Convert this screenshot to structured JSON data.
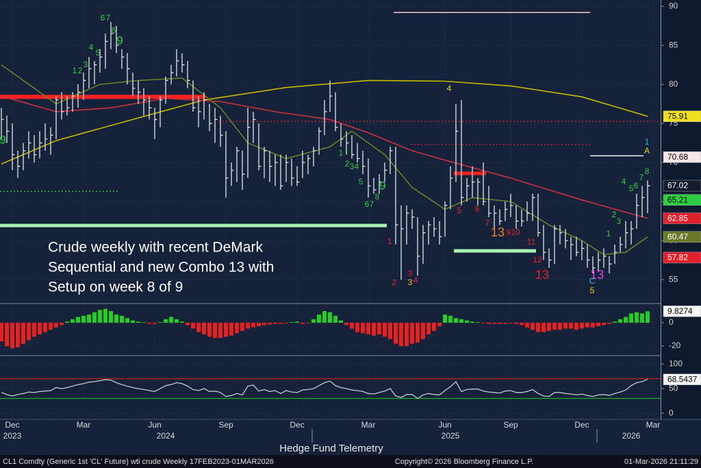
{
  "chart_data": [
    {
      "type": "ohlc",
      "color": "#e6e6e6",
      "grid": true,
      "categories": [
        null,
        null,
        "Dec",
        null,
        null,
        null,
        null,
        null,
        null,
        null,
        null,
        null,
        null,
        null,
        null,
        "Mar",
        null,
        null,
        null,
        null,
        null,
        null,
        null,
        null,
        null,
        null,
        null,
        null,
        "Jun",
        null,
        null,
        null,
        null,
        null,
        null,
        null,
        null,
        null,
        null,
        null,
        null,
        "Sep",
        null,
        null,
        null,
        null,
        null,
        null,
        null,
        null,
        null,
        null,
        null,
        null,
        "Dec",
        null,
        null,
        null,
        null,
        null,
        null,
        null,
        null,
        null,
        null,
        null,
        null,
        "Mar",
        null,
        null,
        null,
        null,
        null,
        null,
        null,
        null,
        null,
        null,
        null,
        null,
        null,
        "Jun",
        null,
        null,
        null,
        null,
        null,
        null,
        null,
        null,
        null,
        null,
        null,
        "Sep",
        null,
        null,
        null,
        null,
        null,
        null,
        null,
        null,
        null,
        null,
        null,
        null,
        "Dec",
        null,
        null,
        null,
        null,
        null,
        null,
        null,
        null,
        null,
        null,
        null,
        null,
        "Mar"
      ],
      "x_year_labels": [
        "2023",
        "2024",
        "2025",
        "2026"
      ],
      "high": [
        77,
        76,
        75,
        71.5,
        72.5,
        74,
        73.5,
        74,
        75,
        74.5,
        78.5,
        79,
        78.5,
        79,
        80,
        81.5,
        83.5,
        83,
        84.5,
        86.5,
        88,
        87.5,
        84.5,
        84,
        81.5,
        80.5,
        79.5,
        78.5,
        77,
        78.5,
        81,
        82.5,
        84.5,
        84,
        83,
        80.5,
        78.5,
        79,
        77.5,
        77,
        76,
        74,
        70,
        72,
        71.5,
        77,
        76.5,
        75,
        72,
        71.5,
        71,
        71,
        71,
        70.5,
        69.5,
        71.5,
        71,
        72,
        74.5,
        78,
        80.5,
        79,
        75,
        74,
        73.5,
        72.5,
        71.5,
        70.5,
        68,
        68.5,
        70,
        72,
        72,
        64.5,
        64.5,
        64,
        63,
        62,
        62.5,
        63,
        62.5,
        65,
        69.5,
        77.5,
        78,
        68,
        69.5,
        68,
        70,
        67,
        64.5,
        64,
        65,
        66,
        64.5,
        64,
        65,
        66,
        66,
        62,
        59,
        62,
        62,
        61.5,
        60.5,
        60.5,
        60,
        59.5,
        58,
        58.5,
        59,
        58,
        59.5,
        60.5,
        62.5,
        62.5,
        66,
        67,
        67.7,
        null
      ],
      "low": [
        73,
        72.5,
        69,
        68,
        69,
        70.5,
        70,
        70.5,
        71.5,
        71,
        73,
        75.5,
        76,
        76.5,
        77,
        78,
        79.5,
        80,
        81.5,
        82,
        84.5,
        84,
        82,
        80,
        78.5,
        77.5,
        76,
        75.5,
        73,
        74.5,
        77.5,
        80,
        81,
        81.5,
        79.5,
        76.5,
        74.5,
        75.5,
        74,
        72.5,
        72,
        65.5,
        67,
        67.5,
        66.5,
        68,
        72.5,
        69,
        68,
        67.5,
        67,
        66.5,
        67.5,
        67,
        67,
        68,
        68.5,
        69.5,
        71,
        73.5,
        76.5,
        74,
        72,
        71,
        70.5,
        70,
        68.5,
        65.5,
        66,
        66,
        67.5,
        68.5,
        59.5,
        55,
        59.5,
        61.5,
        55.5,
        57,
        59.5,
        60.5,
        59.5,
        60.5,
        64,
        67.5,
        64.5,
        65,
        65.5,
        64.5,
        64.5,
        63,
        61.5,
        62,
        62.5,
        63,
        61.5,
        61.8,
        62.5,
        62.5,
        60.5,
        57.5,
        56.5,
        57,
        59.5,
        59,
        57.5,
        58,
        57.5,
        56.5,
        55.8,
        56,
        56.5,
        55.8,
        57,
        58.5,
        59,
        59.5,
        61.5,
        63,
        63.5,
        null
      ],
      "close": [
        75.5,
        74,
        71,
        69.5,
        71.5,
        72.5,
        71,
        72.5,
        73,
        73.5,
        78,
        76.5,
        77,
        78.5,
        79,
        80.5,
        82,
        82.5,
        83.5,
        85.5,
        86.5,
        85,
        83.5,
        82,
        79.5,
        79,
        78,
        77,
        75.5,
        78,
        80.5,
        81.5,
        83,
        82.5,
        80.5,
        77,
        76.5,
        78,
        75,
        75.5,
        73.5,
        68,
        69,
        71.5,
        68.5,
        74.5,
        75.5,
        69.5,
        71.5,
        69.5,
        70,
        67,
        70,
        68,
        67.5,
        70,
        70.5,
        71.5,
        74,
        76.5,
        78.5,
        74.5,
        73,
        72.5,
        71,
        70.5,
        69.5,
        67,
        66.5,
        67.5,
        69,
        71.5,
        62,
        61.5,
        63.5,
        63,
        58,
        61,
        62,
        61.5,
        60.5,
        64.5,
        68,
        74,
        65.5,
        67,
        67.5,
        67.5,
        65,
        63.5,
        63.5,
        62.5,
        64,
        64.5,
        62.5,
        62.5,
        63.5,
        65.5,
        61,
        58.5,
        57.5,
        61.5,
        61,
        60,
        59.5,
        58.5,
        59,
        57.5,
        56.5,
        57.5,
        58,
        57,
        58.5,
        59.5,
        61,
        61.5,
        64.5,
        65.5,
        67.02,
        null
      ],
      "moving_averages": [
        {
          "color": "#c9b800",
          "x": [
            0,
            10,
            25,
            37,
            52,
            67,
            81,
            93,
            106,
            118
          ],
          "values": [
            69.8,
            72.8,
            75.7,
            78,
            79.6,
            80.5,
            80.4,
            79.8,
            78.4,
            75.91
          ]
        },
        {
          "color": "#c8303c",
          "x": [
            0,
            10,
            20,
            30,
            40,
            50,
            60,
            67,
            75,
            81,
            93,
            106,
            118
          ],
          "values": [
            78.5,
            76.5,
            77,
            78.2,
            77.8,
            76.5,
            75.5,
            73.8,
            71.5,
            70.3,
            68,
            65.2,
            62.85
          ]
        },
        {
          "color": "#6e7d2a",
          "x": [
            0,
            10,
            18,
            25,
            33,
            40,
            45,
            52,
            60,
            64,
            70,
            75,
            81,
            86,
            93,
            100,
            106,
            110,
            114,
            118
          ],
          "values": [
            82.5,
            77.5,
            80,
            80.5,
            80.8,
            77,
            72.5,
            70.5,
            72,
            74,
            71,
            66.8,
            64,
            65.5,
            65,
            62,
            60,
            58.2,
            58.5,
            60.47
          ]
        }
      ],
      "levels": [
        {
          "value": 78.4,
          "color": "#ff2020"
        },
        {
          "value": 61.93,
          "color": "#a8f0b0"
        },
        {
          "value": 58.68,
          "color": "#a8f0b0"
        },
        {
          "value": 68.6,
          "color": "#ff2020"
        },
        {
          "value": 89.2,
          "color": "#f0d0d0"
        },
        {
          "value": 70.85,
          "color": "#f2f2f2"
        },
        {
          "value": 75.26,
          "color": "#e02030"
        },
        {
          "value": 72.3,
          "color": "#e02030"
        },
        {
          "value": 66.3,
          "color": "#30d030"
        }
      ],
      "annotations": [
        {
          "text": "6",
          "color": "#2ecc40"
        },
        {
          "text": "7",
          "color": "#2ecc40"
        },
        {
          "text": "8",
          "color": "#2ecc40"
        },
        {
          "text": "9",
          "color": "#2ecc40"
        },
        {
          "text": "4",
          "color": "#2ecc40"
        },
        {
          "text": "5",
          "color": "#2ecc40"
        },
        {
          "text": "1",
          "color": "#2ecc40"
        },
        {
          "text": "2",
          "color": "#2ecc40"
        },
        {
          "text": "3",
          "color": "#2ecc40"
        },
        {
          "text": "9",
          "color": "#2ecc40"
        },
        {
          "text": "1",
          "color": "#2ecc40"
        },
        {
          "text": "2",
          "color": "#2ecc40"
        },
        {
          "text": "3",
          "color": "#2ecc40"
        },
        {
          "text": "4",
          "color": "#2ecc40"
        },
        {
          "text": "5",
          "color": "#2ecc40"
        },
        {
          "text": "9",
          "color": "#2ecc40"
        },
        {
          "text": "8",
          "color": "#2ecc40"
        },
        {
          "text": "6",
          "color": "#2ecc40"
        },
        {
          "text": "7",
          "color": "#2ecc40"
        },
        {
          "text": "1",
          "color": "#e8202a"
        },
        {
          "text": "2",
          "color": "#e8202a"
        },
        {
          "text": "3",
          "color": "#e8202a"
        },
        {
          "text": "3",
          "color": "#f0d020"
        },
        {
          "text": "4",
          "color": "#e8202a"
        },
        {
          "text": "4",
          "color": "#f0d020"
        },
        {
          "text": "5",
          "color": "#e8202a"
        },
        {
          "text": "6",
          "color": "#e8202a"
        },
        {
          "text": "7",
          "color": "#e8202a"
        },
        {
          "text": "13",
          "color": "#f08020"
        },
        {
          "text": "9",
          "color": "#e8202a"
        },
        {
          "text": "10",
          "color": "#e8202a"
        },
        {
          "text": "11",
          "color": "#e8202a"
        },
        {
          "text": "12",
          "color": "#e8202a"
        },
        {
          "text": "13",
          "color": "#e8202a"
        },
        {
          "text": "13",
          "color": "#e040e0"
        },
        {
          "text": "C",
          "color": "#20c0e0"
        },
        {
          "text": "5",
          "color": "#f0d020"
        },
        {
          "text": "1",
          "color": "#20c0e0"
        },
        {
          "text": "A",
          "color": "#f0d020"
        },
        {
          "text": "1",
          "color": "#2ecc40"
        },
        {
          "text": "2",
          "color": "#2ecc40"
        },
        {
          "text": "3",
          "color": "#2ecc40"
        },
        {
          "text": "4",
          "color": "#2ecc40"
        },
        {
          "text": "5",
          "color": "#2ecc40"
        },
        {
          "text": "6",
          "color": "#2ecc40"
        },
        {
          "text": "7",
          "color": "#2ecc40"
        },
        {
          "text": "8",
          "color": "#2ecc40"
        }
      ],
      "ylim": [
        52.2,
        90.8
      ],
      "yticks": [
        55,
        60,
        65,
        70,
        75,
        80,
        85,
        90
      ],
      "tags": [
        {
          "value": 75.91,
          "color": "#f0e020",
          "text_color": "#000000"
        },
        {
          "value": 70.68,
          "color": "#f5e6e6",
          "text_color": "#000000"
        },
        {
          "value": 67.02,
          "color": "#141c2c",
          "text_color": "#ffffff"
        },
        {
          "value": 65.21,
          "color": "#2ecc40",
          "text_color": "#000000"
        },
        {
          "value": 62.85,
          "color": "#e0202a",
          "text_color": "#ffffff"
        },
        {
          "value": 60.47,
          "color": "#6b7a2a",
          "text_color": "#ffffff"
        },
        {
          "value": 57.82,
          "color": "#e0202a",
          "text_color": "#ffffff"
        }
      ]
    },
    {
      "type": "bar",
      "colors": {
        "positive": "#22d022",
        "negative": "#e82020"
      },
      "values": [
        -16,
        -20,
        -22,
        -21,
        -18,
        -15,
        -12,
        -10,
        -8,
        -6,
        -4,
        -2,
        1,
        3,
        5,
        6,
        7,
        9,
        11,
        12,
        10,
        7,
        6,
        4,
        2,
        1,
        0.5,
        -1,
        -1,
        0.5,
        3,
        5,
        3,
        1,
        -2,
        -5,
        -8,
        -10,
        -12,
        -13,
        -13,
        -12,
        -11,
        -9,
        -7,
        -5,
        -4,
        -3,
        -2,
        -1.5,
        -1,
        -1,
        -0.5,
        0.5,
        1,
        -1,
        -0.5,
        3,
        7,
        10,
        9,
        6,
        2,
        -2,
        -5,
        -8,
        -9,
        -10,
        -11,
        -10,
        -12,
        -14,
        -18,
        -20,
        -20,
        -18,
        -17,
        -14,
        -10,
        -7,
        -3,
        7,
        6,
        4,
        3,
        2,
        1,
        0.5,
        -0.5,
        -1,
        -1,
        -1,
        -1,
        -0.5,
        -1,
        -2,
        -4,
        -6,
        -8,
        -8,
        -7,
        -6,
        -6,
        -5,
        -5,
        -6,
        -5,
        -4,
        -4,
        -3,
        -2,
        -1,
        1,
        3,
        5,
        8,
        9,
        8,
        9.8274,
        null
      ],
      "ylim": [
        -27.6,
        14.7
      ],
      "yticks": [
        0,
        -20
      ],
      "tags": [
        {
          "value": 9.8274,
          "color": "#f5f5f5",
          "text_color": "#000000"
        }
      ]
    },
    {
      "type": "line",
      "color": "#c8c8c8",
      "values": [
        42,
        38,
        35,
        38,
        40,
        43,
        42,
        44,
        45,
        46,
        52,
        50,
        52,
        55,
        58,
        60,
        63,
        64,
        66,
        68,
        67,
        62,
        58,
        55,
        52,
        50,
        48,
        46,
        44,
        50,
        56,
        58,
        62,
        60,
        55,
        48,
        46,
        50,
        44,
        45,
        42,
        34,
        36,
        40,
        37,
        55,
        57,
        45,
        48,
        44,
        46,
        40,
        46,
        43,
        42,
        47,
        48,
        50,
        56,
        62,
        65,
        56,
        52,
        50,
        47,
        46,
        44,
        40,
        39,
        42,
        45,
        50,
        35,
        32,
        38,
        38,
        30,
        37,
        40,
        38,
        37,
        46,
        54,
        64,
        44,
        48,
        49,
        49,
        45,
        43,
        42,
        41,
        45,
        46,
        42,
        42,
        44,
        48,
        40,
        35,
        34,
        42,
        42,
        40,
        39,
        37,
        39,
        36,
        34,
        37,
        38,
        36,
        40,
        43,
        47,
        56,
        62,
        64,
        68.5437,
        null
      ],
      "reference_lines": [
        {
          "value": 70,
          "color": "#d02028"
        },
        {
          "value": 30,
          "color": "#20b030"
        }
      ],
      "ylim": [
        -11,
        114
      ],
      "yticks": [
        0,
        50,
        100
      ],
      "tags": [
        {
          "value": 68.5437,
          "color": "#f5f5f5",
          "text_color": "#000000"
        }
      ]
    }
  ],
  "note": [
    "Crude weekly with recent DeMark",
    "Sequential and new Combo 13 with",
    "Setup on week 8 of 9"
  ],
  "caption": "Hedge Fund Telemetry",
  "footer": {
    "left": "CL1 Comdty (Generic 1st 'CL' Future) wti crude Weekly 17FEB2023-01MAR2026",
    "center": "Copyright© 2026 Bloomberg Finance L.P.",
    "right": "01-Mar-2026 21:11:29"
  }
}
